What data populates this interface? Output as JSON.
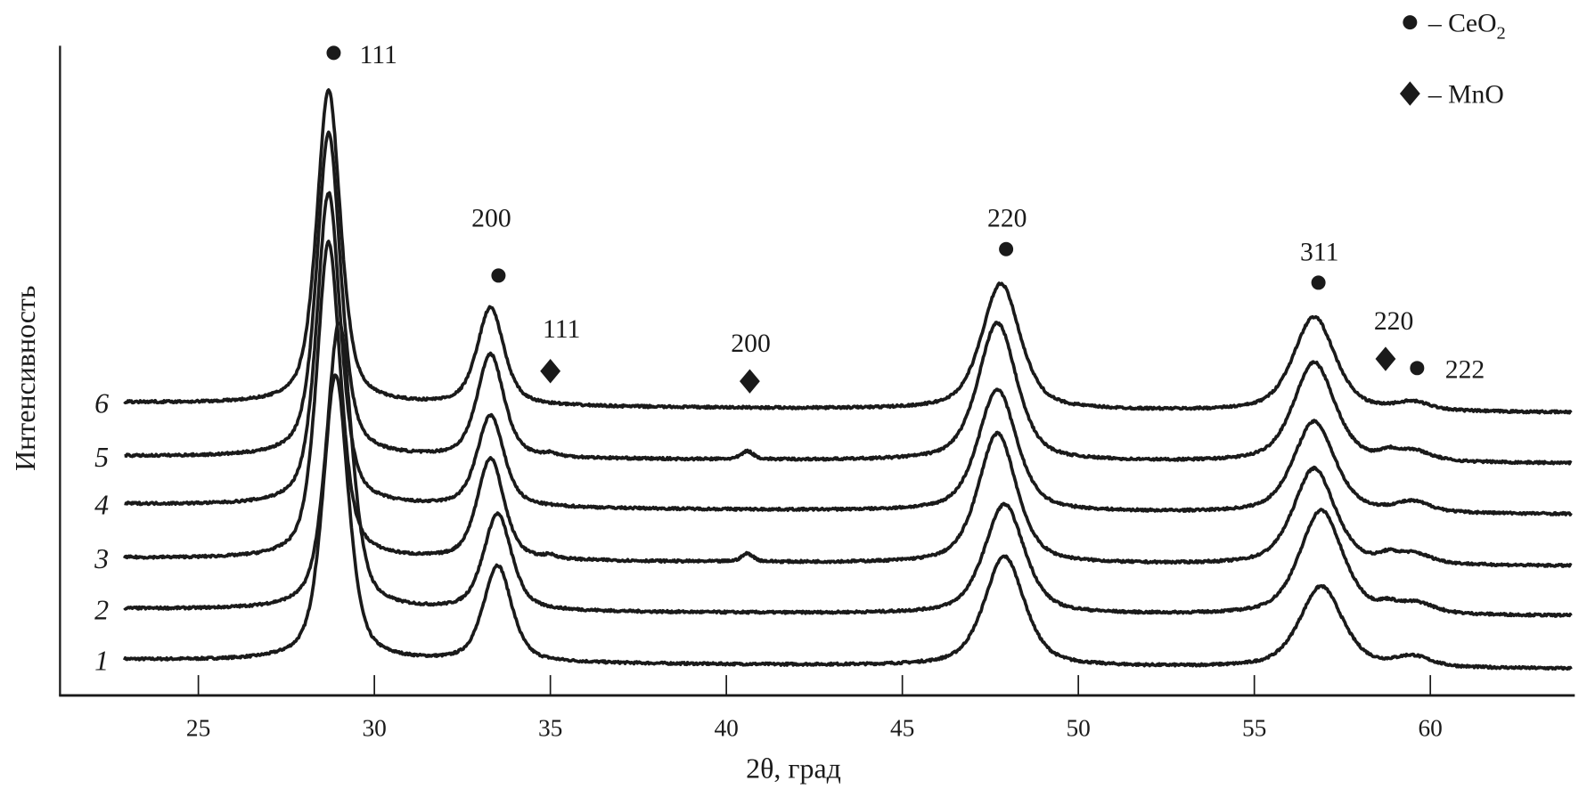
{
  "chart_data": {
    "type": "line",
    "title": "",
    "xlabel": "2θ, град",
    "ylabel": "Интенсивность",
    "xlim": [
      21,
      64.1
    ],
    "xrange_data": [
      22.9,
      64
    ],
    "xticks": [
      "25",
      "30",
      "35",
      "40",
      "45",
      "50",
      "55",
      "60"
    ],
    "ylim": [
      0,
      638
    ],
    "y_units": "arbitrary (curves vertically offset)",
    "grid": false,
    "legend_position": "top-right",
    "legend": [
      {
        "marker": "circle",
        "label": "– CeO",
        "sub": "2"
      },
      {
        "marker": "diamond",
        "label": "– MnO",
        "sub": ""
      }
    ],
    "series": [
      {
        "name": "1",
        "baseline": [
          34,
          27,
          25
        ],
        "peaks": [
          [
            28.9,
            282,
            0.85
          ],
          [
            33.5,
            95,
            0.95
          ],
          [
            47.9,
            108,
            1.35
          ],
          [
            56.9,
            80,
            1.45
          ],
          [
            59.5,
            10,
            1.2
          ]
        ]
      },
      {
        "name": "2",
        "baseline": [
          84,
          78,
          77
        ],
        "peaks": [
          [
            29.0,
            283,
            0.85
          ],
          [
            33.5,
            95,
            0.95
          ],
          [
            47.9,
            108,
            1.35
          ],
          [
            56.9,
            103,
            1.45
          ],
          [
            58.8,
            6,
            0.6
          ],
          [
            59.6,
            10,
            1.2
          ]
        ]
      },
      {
        "name": "3",
        "baseline": [
          134,
          128,
          126
        ],
        "peaks": [
          [
            28.7,
            312,
            0.8
          ],
          [
            33.3,
            100,
            0.9
          ],
          [
            35.0,
            3,
            0.4
          ],
          [
            40.6,
            8,
            0.4
          ],
          [
            47.7,
            128,
            1.3
          ],
          [
            56.7,
            95,
            1.4
          ],
          [
            58.8,
            6,
            0.6
          ],
          [
            59.5,
            10,
            1.2
          ]
        ]
      },
      {
        "name": "4",
        "baseline": [
          187,
          179,
          177
        ],
        "peaks": [
          [
            28.7,
            308,
            0.8
          ],
          [
            33.3,
            90,
            0.9
          ],
          [
            47.7,
            120,
            1.3
          ],
          [
            56.7,
            90,
            1.4
          ],
          [
            59.5,
            10,
            1.2
          ]
        ]
      },
      {
        "name": "5",
        "baseline": [
          234,
          229,
          227
        ],
        "peaks": [
          [
            28.7,
            319,
            0.8
          ],
          [
            33.3,
            102,
            0.9
          ],
          [
            35.0,
            3,
            0.4
          ],
          [
            40.6,
            8,
            0.4
          ],
          [
            47.7,
            136,
            1.3
          ],
          [
            56.7,
            98,
            1.4
          ],
          [
            58.8,
            6,
            0.6
          ],
          [
            59.5,
            10,
            1.2
          ]
        ]
      },
      {
        "name": "6",
        "baseline": [
          287,
          279,
          277
        ],
        "peaks": [
          [
            28.7,
            309,
            0.8
          ],
          [
            33.3,
            96,
            0.9
          ],
          [
            47.8,
            124,
            1.3
          ],
          [
            56.7,
            93,
            1.4
          ],
          [
            59.5,
            8,
            1.2
          ]
        ]
      }
    ],
    "annotations": [
      {
        "phase": "CeO2",
        "marker": "circle",
        "hkl": "111",
        "x": 28.9
      },
      {
        "phase": "CeO2",
        "marker": "circle",
        "hkl": "200",
        "x": 33.5
      },
      {
        "phase": "MnO",
        "marker": "diamond",
        "hkl": "111",
        "x": 35.0
      },
      {
        "phase": "MnO",
        "marker": "diamond",
        "hkl": "200",
        "x": 40.7
      },
      {
        "phase": "CeO2",
        "marker": "circle",
        "hkl": "220",
        "x": 47.8
      },
      {
        "phase": "CeO2",
        "marker": "circle",
        "hkl": "311",
        "x": 56.8
      },
      {
        "phase": "MnO",
        "marker": "diamond",
        "hkl": "220",
        "x": 58.8
      },
      {
        "phase": "CeO2",
        "marker": "circle",
        "hkl": "222",
        "x": 59.6
      }
    ],
    "line_color": "#1a1a1a"
  }
}
